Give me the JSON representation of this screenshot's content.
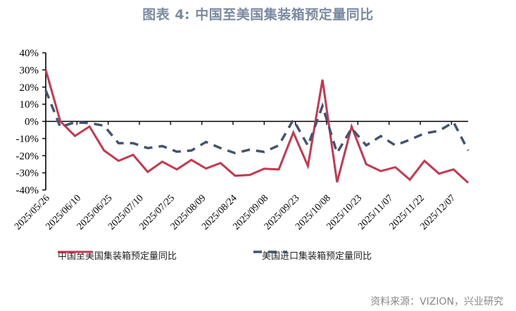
{
  "title": "图表 4: 中国至美国集装箱预定量同比",
  "source": "资料来源：VIZION，兴业研究",
  "legend": {
    "series1": "中国至美国集装箱预定量同比",
    "series2": "美国进口集装箱预定量同比"
  },
  "colors": {
    "series1": "#c8374f",
    "series2": "#44546f",
    "title": "#7a8aa0"
  },
  "chart_data": {
    "type": "line",
    "title": "中国至美国集装箱预定量同比",
    "xlabel": "",
    "ylabel": "",
    "ylim": [
      -40,
      40
    ],
    "yticks": [
      "40%",
      "30%",
      "20%",
      "10%",
      "0%",
      "-10%",
      "-20%",
      "-30%",
      "-40%"
    ],
    "xtick_labels": [
      "2025/05/26",
      "2025/06/10",
      "2025/06/25",
      "2025/07/10",
      "2025/07/25",
      "2025/08/09",
      "2025/08/24",
      "2025/09/08",
      "2025/09/23",
      "2025/10/08",
      "2025/10/23",
      "2025/11/07",
      "2025/11/22",
      "2025/12/07"
    ],
    "x": [
      "2025/05/26",
      "2025/06/02",
      "2025/06/09",
      "2025/06/16",
      "2025/06/23",
      "2025/06/30",
      "2025/07/07",
      "2025/07/14",
      "2025/07/21",
      "2025/07/28",
      "2025/08/04",
      "2025/08/11",
      "2025/08/18",
      "2025/08/25",
      "2025/09/01",
      "2025/09/08",
      "2025/09/15",
      "2025/09/22",
      "2025/09/29",
      "2025/10/06",
      "2025/10/13",
      "2025/10/20",
      "2025/10/27",
      "2025/11/03",
      "2025/11/10",
      "2025/11/17",
      "2025/11/24",
      "2025/12/01",
      "2025/12/08",
      "2025/12/15"
    ],
    "series": [
      {
        "name": "中国至美国集装箱预定量同比",
        "style": "solid",
        "color": "#c8374f",
        "values": [
          30,
          0,
          -8.5,
          -3,
          -17,
          -23,
          -19.5,
          -29.5,
          -23.5,
          -28,
          -22.5,
          -27.5,
          -24.3,
          -31.7,
          -31.2,
          -27.6,
          -28,
          -6.5,
          -26,
          24.3,
          -35.5,
          -3,
          -25,
          -29,
          -26.7,
          -34,
          -23,
          -30.5,
          -28,
          -35.8
        ]
      },
      {
        "name": "美国进口集装箱预定量同比",
        "style": "dashed",
        "color": "#44546f",
        "values": [
          18,
          -3.3,
          -0.5,
          -1,
          -2.5,
          -12.7,
          -12.7,
          -15.6,
          -14.4,
          -17.7,
          -17,
          -12,
          -15.6,
          -18.5,
          -16.5,
          -17.8,
          -14,
          1,
          -14.2,
          9,
          -18.4,
          -4,
          -14,
          -8.6,
          -14,
          -10.7,
          -7,
          -5.5,
          -0.5,
          -17
        ]
      }
    ],
    "grid": false,
    "legend_position": "bottom"
  }
}
